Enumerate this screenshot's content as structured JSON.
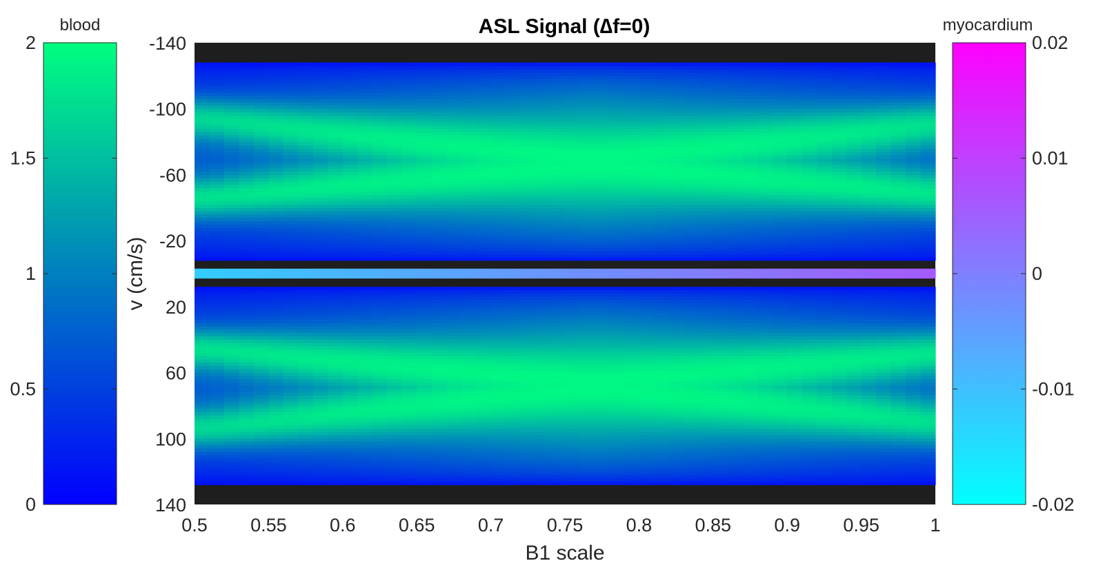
{
  "chart_data": {
    "type": "heatmap",
    "title": "ASL Signal (∆f=0)",
    "xlabel": "B1 scale",
    "ylabel": "v (cm/s)",
    "xlim": [
      0.5,
      1.0
    ],
    "ylim": [
      -140,
      140
    ],
    "y_direction": "reversed",
    "grid": false,
    "x_ticks": [
      "0.5",
      "0.55",
      "0.6",
      "0.65",
      "0.7",
      "0.75",
      "0.8",
      "0.85",
      "0.9",
      "0.95",
      "1"
    ],
    "x_tick_values": [
      0.5,
      0.55,
      0.6,
      0.65,
      0.7,
      0.75,
      0.8,
      0.85,
      0.9,
      0.95,
      1.0
    ],
    "y_ticks": [
      "-140",
      "-100",
      "-60",
      "-20",
      "20",
      "60",
      "100",
      "140"
    ],
    "y_tick_values": [
      -140,
      -100,
      -60,
      -20,
      20,
      60,
      100,
      140
    ],
    "background_color": "#1e1e1e",
    "blood_region": {
      "v_abs_range": [
        8,
        128
      ],
      "band_lobe_centers_cm_s": [
        45,
        95
      ],
      "bands_merge_near_b1": 0.77,
      "peak_value": 1.95,
      "edge_value": 0.05
    },
    "myocardium_line": {
      "v_range": [
        -3,
        3
      ],
      "value_at_b1_0_5": -0.012,
      "value_at_b1_1_0": 0.006
    },
    "colorbars": [
      {
        "name": "blood",
        "position": "left",
        "range": [
          0,
          2
        ],
        "ticks": [
          "0",
          "0.5",
          "1",
          "1.5",
          "2"
        ],
        "tick_values": [
          0,
          0.5,
          1,
          1.5,
          2
        ],
        "colors": [
          "#0000ff",
          "#00ff80"
        ]
      },
      {
        "name": "myocardium",
        "position": "right",
        "range": [
          -0.02,
          0.02
        ],
        "ticks": [
          "-0.02",
          "-0.01",
          "0",
          "0.01",
          "0.02"
        ],
        "tick_values": [
          -0.02,
          -0.01,
          0,
          0.01,
          0.02
        ],
        "colors": [
          "#00ffff",
          "#ff00ff"
        ]
      }
    ]
  }
}
